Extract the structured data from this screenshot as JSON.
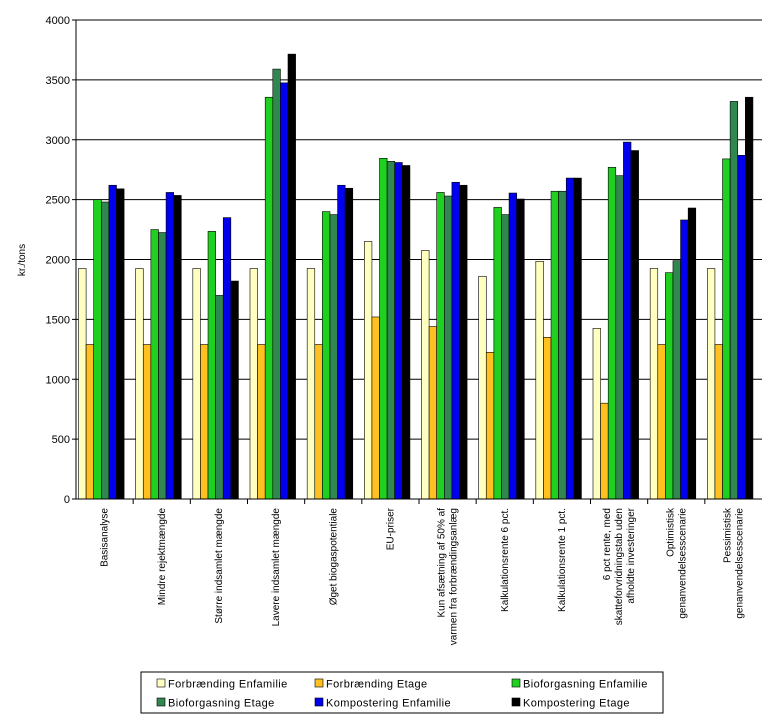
{
  "chart_data": {
    "type": "bar",
    "ylabel": "kr./tons",
    "ylim": [
      0,
      4000
    ],
    "yticks": [
      0,
      500,
      1000,
      1500,
      2000,
      2500,
      3000,
      3500,
      4000
    ],
    "grid": true,
    "legend_position": "bottom",
    "categories": [
      [
        "Basisanalyse"
      ],
      [
        "Mindre rejektmængde"
      ],
      [
        "Større indsamlet mængde"
      ],
      [
        "Lavere indsamlet mængde"
      ],
      [
        "Øget biogaspotentiale"
      ],
      [
        "EU-priser"
      ],
      [
        "Kun afsætning af 50% af",
        "varmen fra forbrændingsanlæg"
      ],
      [
        "Kalkulationsrente 6 pct."
      ],
      [
        "Kalkulationsrente 1 pct."
      ],
      [
        "6 pct rente, med",
        "skatteforvridningstab uden",
        "afholdte investeringer"
      ],
      [
        "Optimistisk",
        "genanvendelsesscenarie"
      ],
      [
        "Pessimistisk",
        "genanvendelsesscenarie"
      ]
    ],
    "series": [
      {
        "name": "Forbrænding Enfamilie",
        "color": "#ffffc0",
        "values": [
          1925,
          1925,
          1925,
          1925,
          1925,
          2150,
          2075,
          1860,
          1985,
          1425,
          1925,
          1925
        ]
      },
      {
        "name": "Forbrænding Etage",
        "color": "#ffc020",
        "values": [
          1290,
          1290,
          1290,
          1290,
          1290,
          1520,
          1440,
          1225,
          1350,
          800,
          1290,
          1290
        ]
      },
      {
        "name": "Bioforgasning Enfamilie",
        "color": "#20d020",
        "values": [
          2500,
          2250,
          2235,
          3355,
          2400,
          2845,
          2560,
          2435,
          2570,
          2770,
          1890,
          2840
        ]
      },
      {
        "name": "Bioforgasning Etage",
        "color": "#308850",
        "values": [
          2480,
          2225,
          1700,
          3590,
          2375,
          2820,
          2530,
          2375,
          2570,
          2700,
          1990,
          3320
        ]
      },
      {
        "name": "Kompostering Enfamilie",
        "color": "#0000ee",
        "values": [
          2620,
          2560,
          2350,
          3475,
          2620,
          2810,
          2645,
          2555,
          2680,
          2980,
          2330,
          2870
        ]
      },
      {
        "name": "Kompostering Etage",
        "color": "#000000",
        "values": [
          2590,
          2535,
          1820,
          3715,
          2595,
          2785,
          2620,
          2505,
          2680,
          2910,
          2430,
          3355
        ]
      }
    ]
  }
}
